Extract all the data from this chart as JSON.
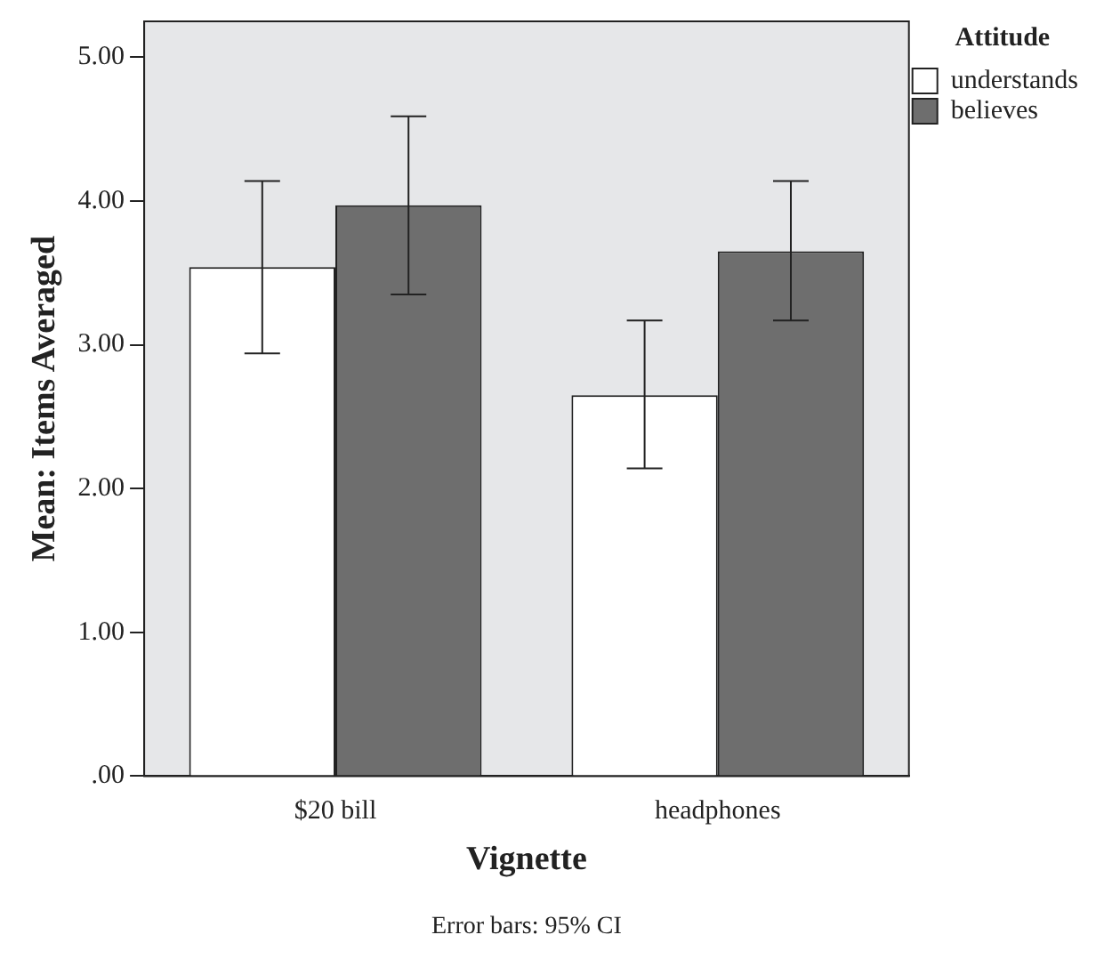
{
  "chart_data": {
    "type": "bar",
    "xlabel": "Vignette",
    "ylabel": "Mean: Items Averaged",
    "legend_title": "Attitude",
    "legend": "top right",
    "categories": [
      "$20 bill",
      "headphones"
    ],
    "series": [
      {
        "name": "understands",
        "color": "#ffffff",
        "values": [
          3.54,
          2.65
        ],
        "errors": [
          [
            2.94,
            4.14
          ],
          [
            2.14,
            3.17
          ]
        ]
      },
      {
        "name": "believes",
        "color": "#6e6e6e",
        "values": [
          3.97,
          3.65
        ],
        "errors": [
          [
            3.35,
            4.59
          ],
          [
            3.17,
            4.14
          ]
        ]
      }
    ],
    "ylim": [
      0,
      5.25
    ],
    "yticks": [
      {
        "value": 0,
        "label": ".00"
      },
      {
        "value": 1,
        "label": "1.00"
      },
      {
        "value": 2,
        "label": "2.00"
      },
      {
        "value": 3,
        "label": "3.00"
      },
      {
        "value": 4,
        "label": "4.00"
      },
      {
        "value": 5,
        "label": "5.00"
      }
    ],
    "grid": false,
    "annotations": [
      "Error bars: 95% CI"
    ]
  }
}
